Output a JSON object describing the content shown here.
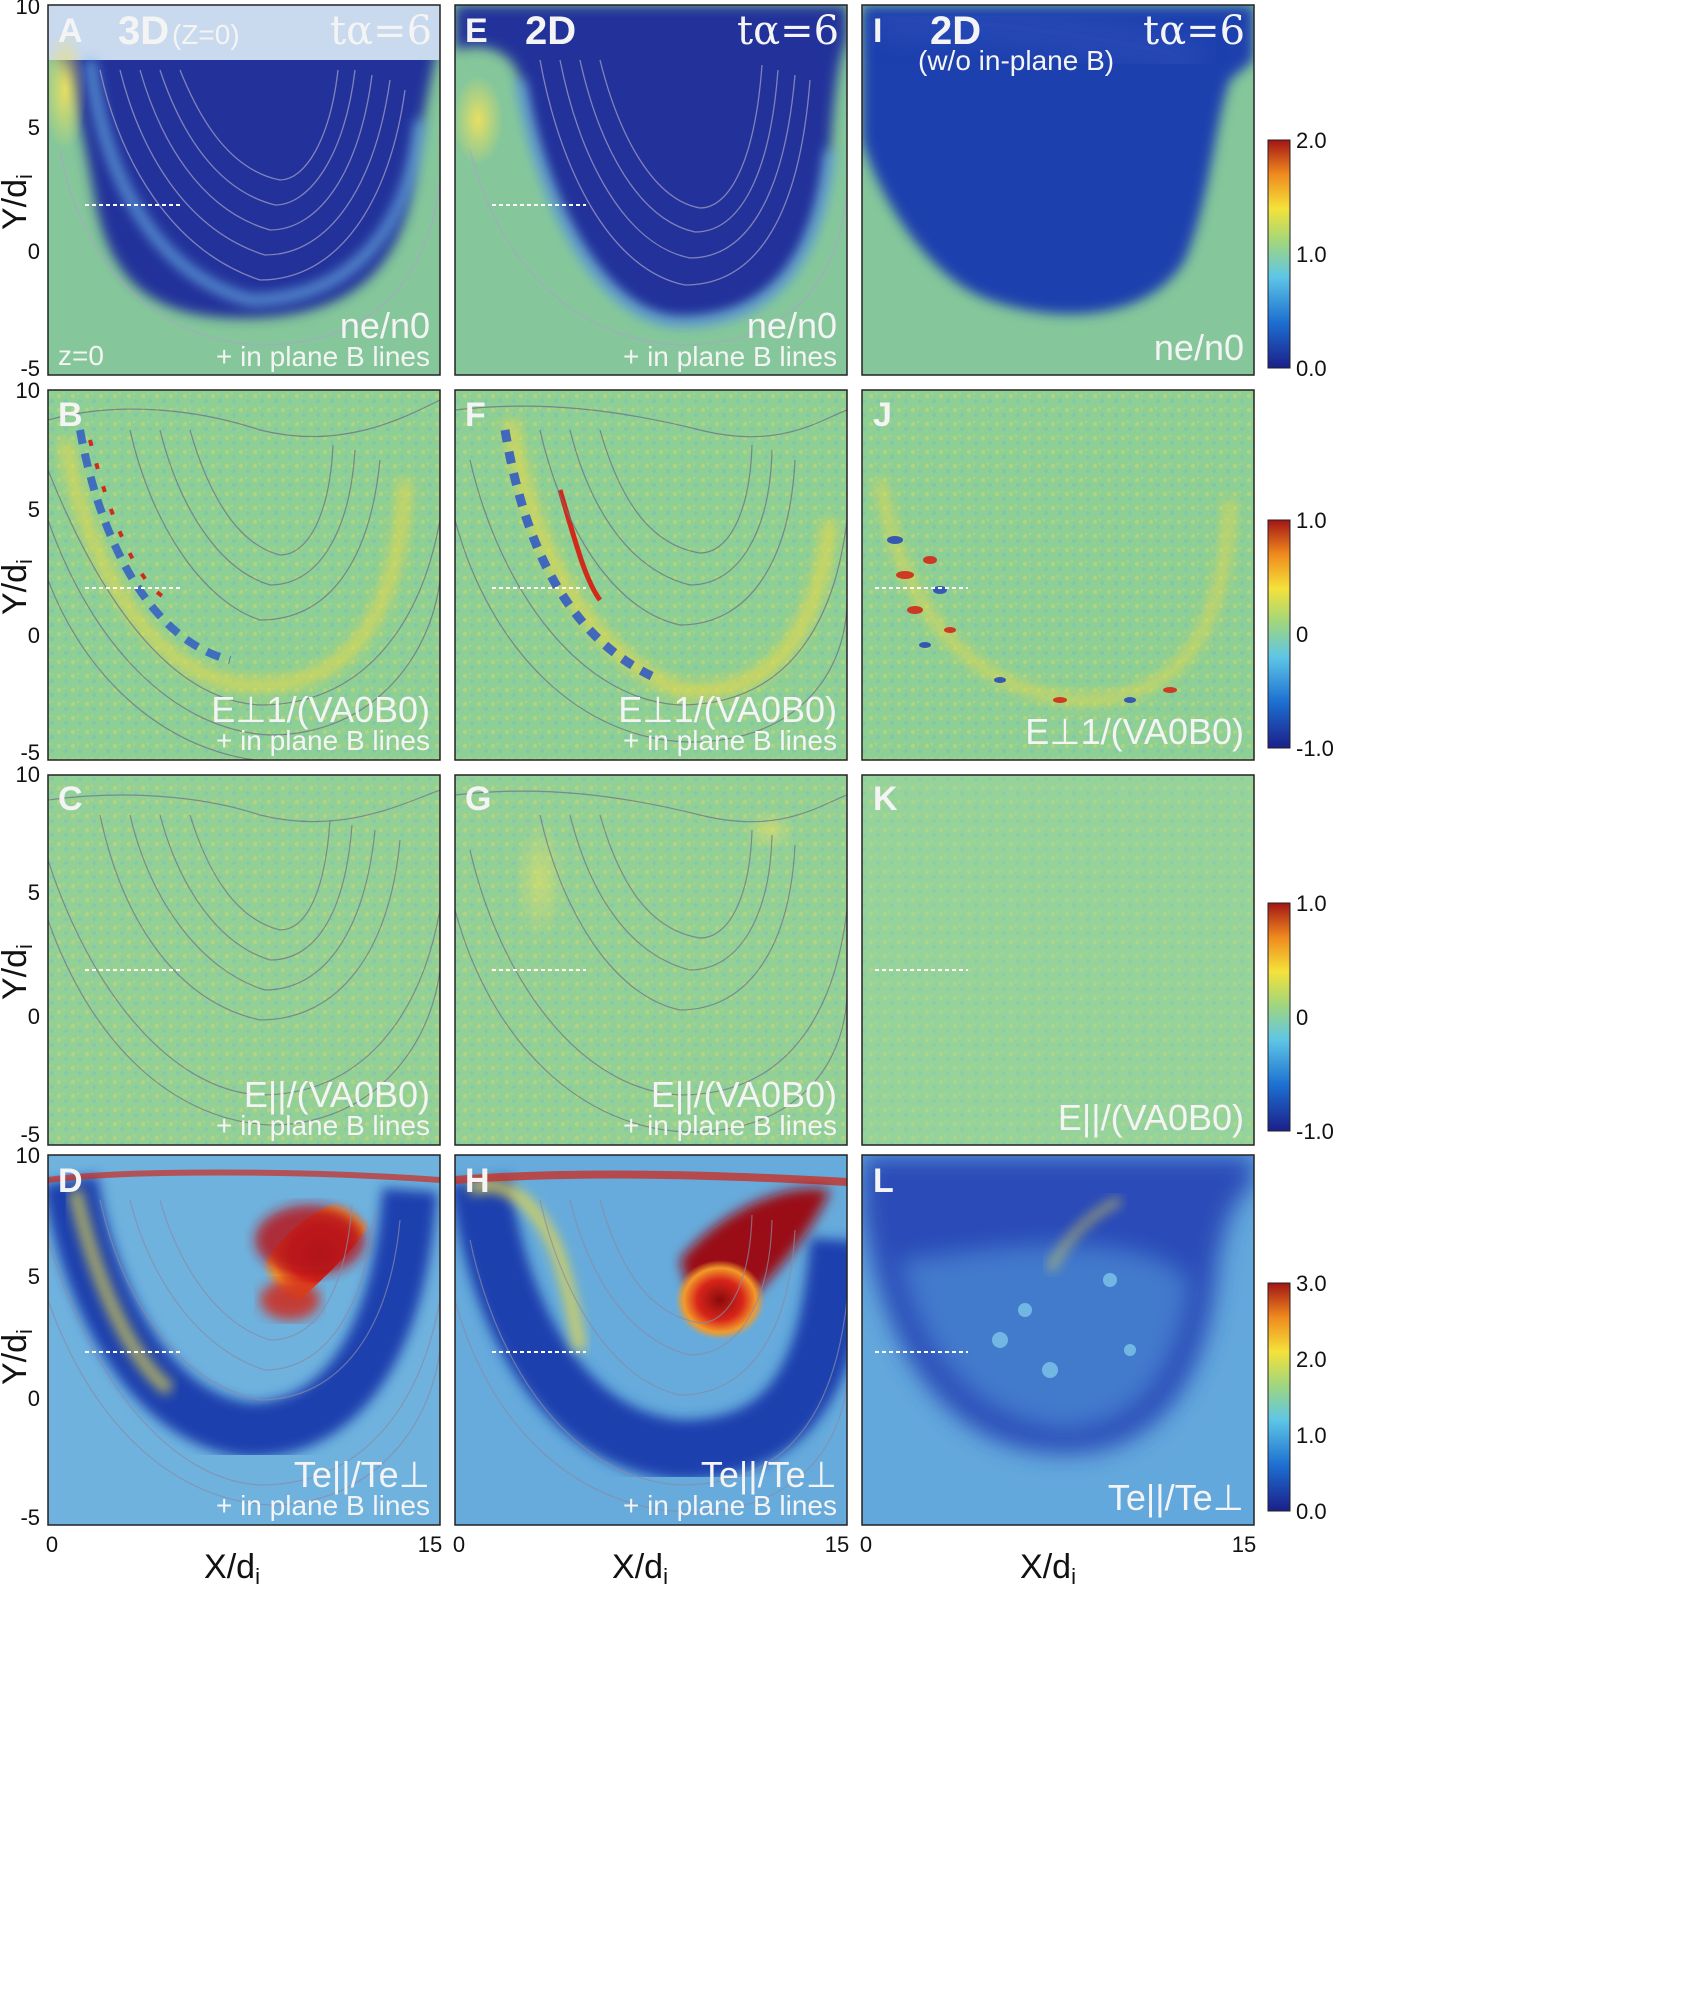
{
  "figure": {
    "x_axis": {
      "label": "X/d",
      "label_sub": "i",
      "ticks": [
        "0",
        "15"
      ]
    },
    "y_axis": {
      "label": "Y/d",
      "label_sub": "i",
      "ticks": [
        "10",
        "5",
        "0",
        "-5"
      ]
    },
    "columns": [
      {
        "title": "3D",
        "subtitle": "(Z=0)",
        "time": "tα=6"
      },
      {
        "title": "2D",
        "subtitle": "",
        "time": "tα=6"
      },
      {
        "title": "2D",
        "subtitle": "(w/o in-plane B)",
        "time": "tα=6"
      }
    ],
    "rows": [
      {
        "quantity": "ne/n0",
        "colorbar": {
          "max": "2.0",
          "mid": "1.0",
          "min": "0.0"
        }
      },
      {
        "quantity": "E⊥1/(VA0B0)",
        "colorbar": {
          "max": "1.0",
          "mid": "0",
          "min": "-1.0"
        }
      },
      {
        "quantity": "E||/(VA0B0)",
        "colorbar": {
          "max": "1.0",
          "mid": "0",
          "min": "-1.0"
        }
      },
      {
        "quantity": "Te||/Te⊥",
        "colorbar": {
          "max": "3.0",
          "mid2": "2.0",
          "mid": "1.0",
          "min": "0.0"
        }
      }
    ],
    "panel_letters": [
      [
        "A",
        "E",
        "I"
      ],
      [
        "B",
        "F",
        "J"
      ],
      [
        "C",
        "G",
        "K"
      ],
      [
        "D",
        "H",
        "L"
      ]
    ],
    "overlay_note": "+ in plane B lines",
    "z_note": "z=0",
    "colors": {
      "low": "#1a2a8c",
      "mid": "#8ccf8c",
      "high": "#a4161a",
      "bg": "#ffffff"
    }
  }
}
